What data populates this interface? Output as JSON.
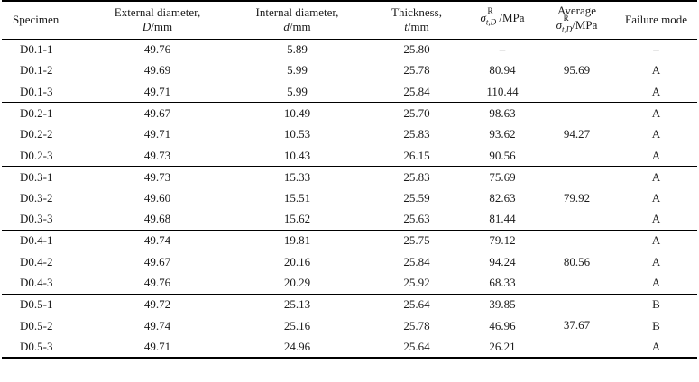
{
  "header": {
    "specimen": "Specimen",
    "external_diameter": "External diameter,",
    "external_symbol": "D",
    "external_unit": "/mm",
    "internal_diameter": "Internal diameter,",
    "internal_symbol": "d",
    "internal_unit": "/mm",
    "thickness": "Thickness,",
    "thickness_symbol": "t",
    "thickness_unit": "/mm",
    "sigma_symbol": "σ",
    "sigma_sup": "R",
    "sigma_sub": "t,D",
    "sigma_unit": " /MPa",
    "average": "Average",
    "average_unit": "/MPa",
    "failure_mode": "Failure mode"
  },
  "groups": [
    {
      "average": "95.69",
      "rows": [
        {
          "specimen": "D0.1-1",
          "external": "49.76",
          "internal": "5.89",
          "thickness": "25.80",
          "sigma": "–",
          "failure": "–"
        },
        {
          "specimen": "D0.1-2",
          "external": "49.69",
          "internal": "5.99",
          "thickness": "25.78",
          "sigma": "80.94",
          "failure": "A"
        },
        {
          "specimen": "D0.1-3",
          "external": "49.71",
          "internal": "5.99",
          "thickness": "25.84",
          "sigma": "110.44",
          "failure": "A"
        }
      ]
    },
    {
      "average": "94.27",
      "rows": [
        {
          "specimen": "D0.2-1",
          "external": "49.67",
          "internal": "10.49",
          "thickness": "25.70",
          "sigma": "98.63",
          "failure": "A"
        },
        {
          "specimen": "D0.2-2",
          "external": "49.71",
          "internal": "10.53",
          "thickness": "25.83",
          "sigma": "93.62",
          "failure": "A"
        },
        {
          "specimen": "D0.2-3",
          "external": "49.73",
          "internal": "10.43",
          "thickness": "26.15",
          "sigma": "90.56",
          "failure": "A"
        }
      ]
    },
    {
      "average": "79.92",
      "rows": [
        {
          "specimen": "D0.3-1",
          "external": "49.73",
          "internal": "15.33",
          "thickness": "25.83",
          "sigma": "75.69",
          "failure": "A"
        },
        {
          "specimen": "D0.3-2",
          "external": "49.60",
          "internal": "15.51",
          "thickness": "25.59",
          "sigma": "82.63",
          "failure": "A"
        },
        {
          "specimen": "D0.3-3",
          "external": "49.68",
          "internal": "15.62",
          "thickness": "25.63",
          "sigma": "81.44",
          "failure": "A"
        }
      ]
    },
    {
      "average": "80.56",
      "rows": [
        {
          "specimen": "D0.4-1",
          "external": "49.74",
          "internal": "19.81",
          "thickness": "25.75",
          "sigma": "79.12",
          "failure": "A"
        },
        {
          "specimen": "D0.4-2",
          "external": "49.67",
          "internal": "20.16",
          "thickness": "25.84",
          "sigma": "94.24",
          "failure": "A"
        },
        {
          "specimen": "D0.4-3",
          "external": "49.76",
          "internal": "20.29",
          "thickness": "25.92",
          "sigma": "68.33",
          "failure": "A"
        }
      ]
    },
    {
      "average": "37.67",
      "rows": [
        {
          "specimen": "D0.5-1",
          "external": "49.72",
          "internal": "25.13",
          "thickness": "25.64",
          "sigma": "39.85",
          "failure": "B"
        },
        {
          "specimen": "D0.5-2",
          "external": "49.74",
          "internal": "25.16",
          "thickness": "25.78",
          "sigma": "46.96",
          "failure": "B"
        },
        {
          "specimen": "D0.5-3",
          "external": "49.71",
          "internal": "24.96",
          "thickness": "25.64",
          "sigma": "26.21",
          "failure": "A"
        }
      ]
    }
  ]
}
